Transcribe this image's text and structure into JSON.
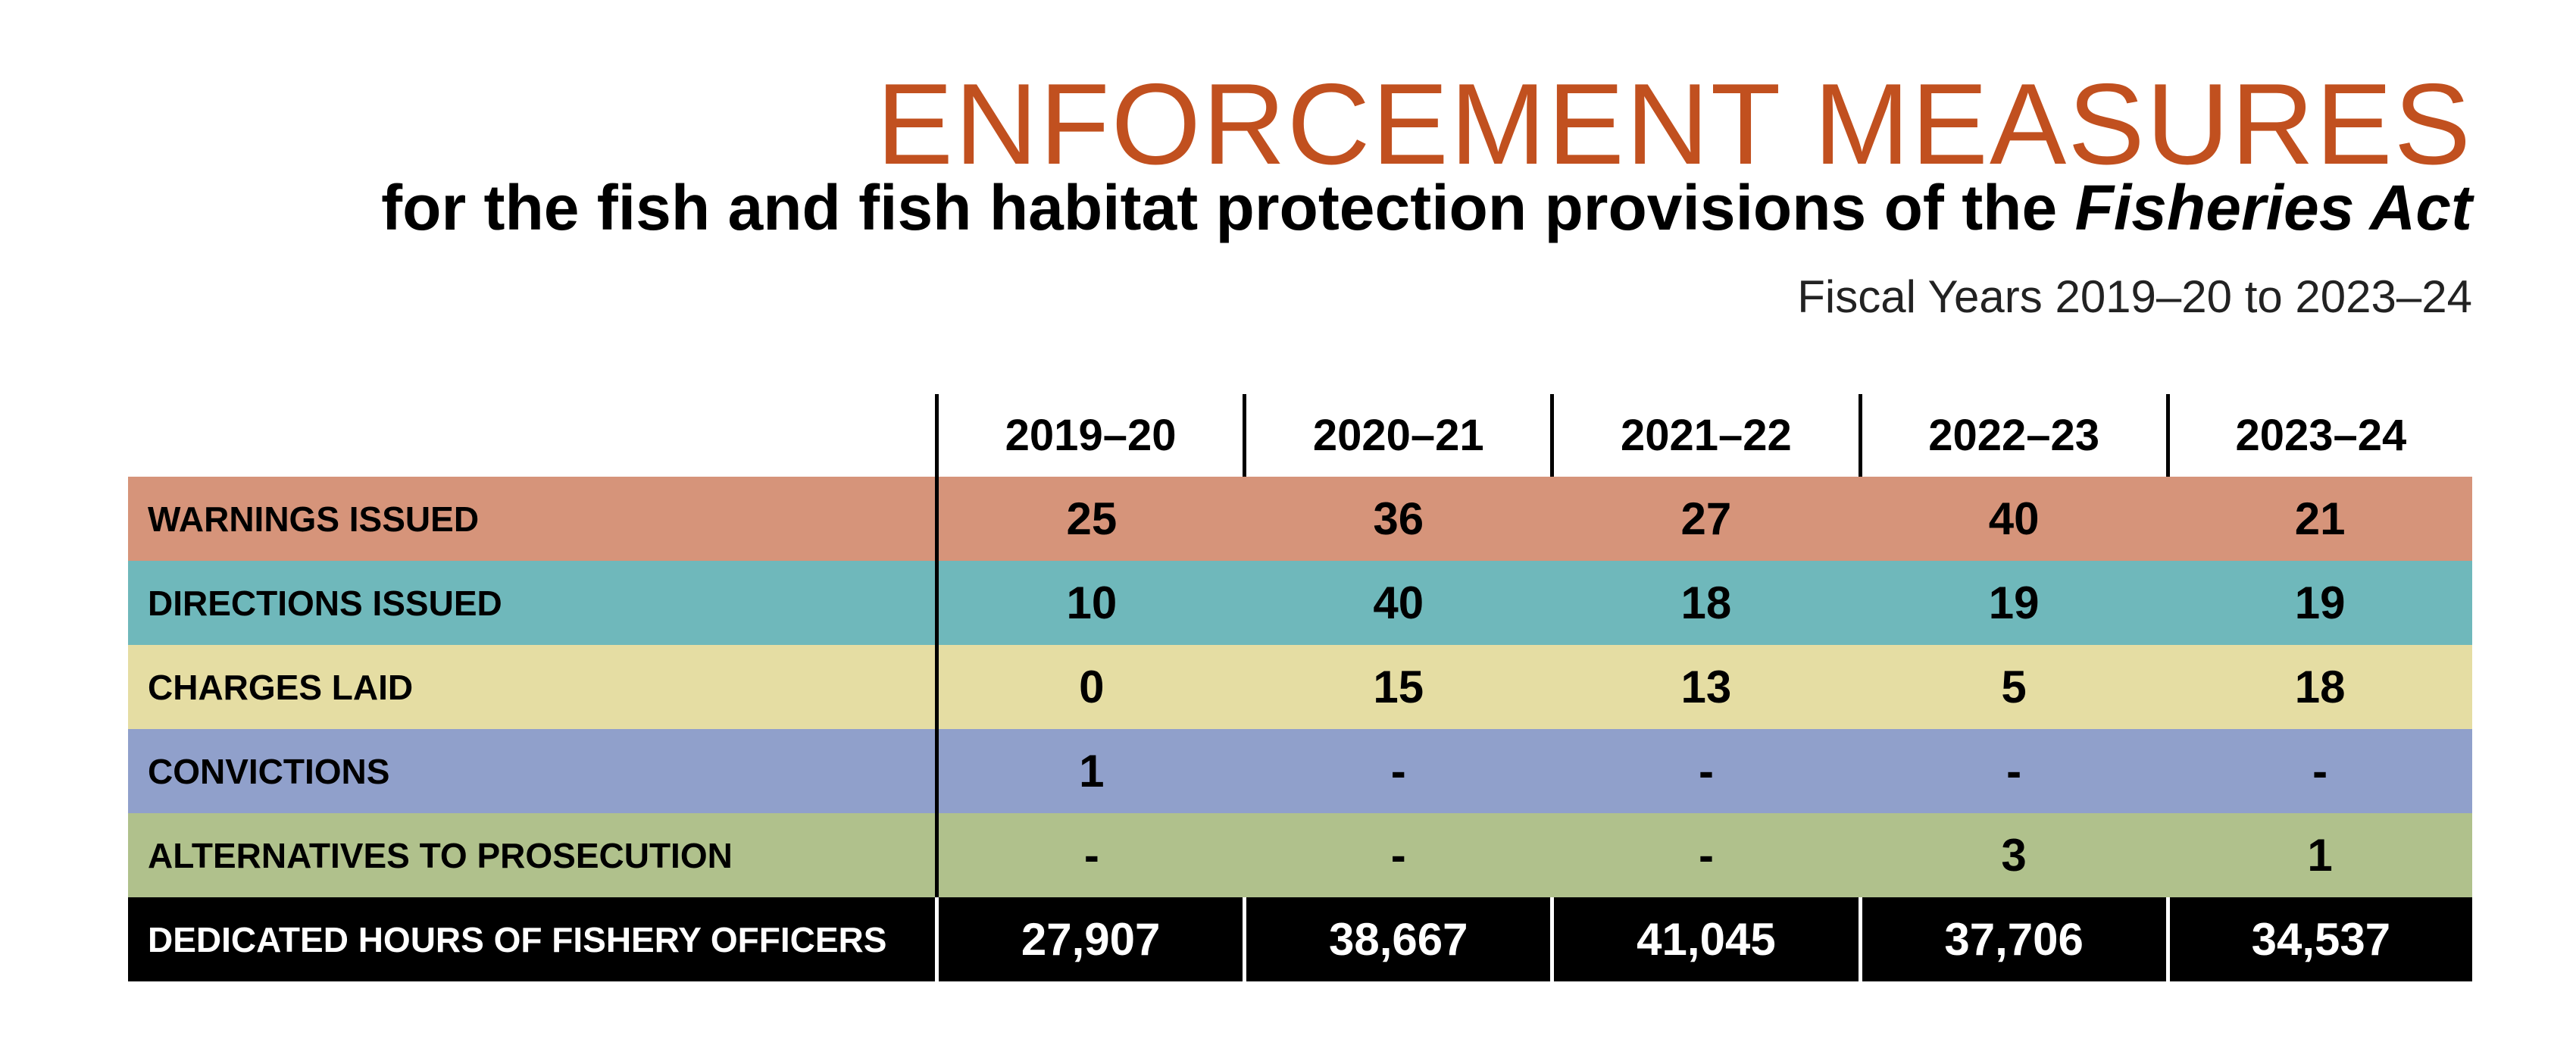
{
  "header": {
    "title": "ENFORCEMENT MEASURES",
    "subtitle_prefix": "for the fish and fish habitat protection provisions of the ",
    "subtitle_italic": "Fisheries Act",
    "fiscal_range": "Fiscal Years 2019–20 to 2023–24"
  },
  "table": {
    "columns": [
      "2019–20",
      "2020–21",
      "2021–22",
      "2022–23",
      "2023–24"
    ],
    "rows": [
      {
        "label": "WARNINGS ISSUED",
        "color": "#D6947A",
        "values": [
          "25",
          "36",
          "27",
          "40",
          "21"
        ]
      },
      {
        "label": "DIRECTIONS ISSUED",
        "color": "#6FB8BB",
        "values": [
          "10",
          "40",
          "18",
          "19",
          "19"
        ]
      },
      {
        "label": "CHARGES LAID",
        "color": "#E5DDA3",
        "values": [
          "0",
          "15",
          "13",
          "5",
          "18"
        ]
      },
      {
        "label": "CONVICTIONS",
        "color": "#90A0CB",
        "values": [
          "1",
          "-",
          "-",
          "-",
          "-"
        ]
      },
      {
        "label": "ALTERNATIVES TO PROSECUTION",
        "color": "#B0C18C",
        "values": [
          "-",
          "-",
          "-",
          "3",
          "1"
        ]
      },
      {
        "label": "DEDICATED HOURS OF FISHERY OFFICERS",
        "color": "#000000",
        "values": [
          "27,907",
          "38,667",
          "41,045",
          "37,706",
          "34,537"
        ]
      }
    ]
  }
}
